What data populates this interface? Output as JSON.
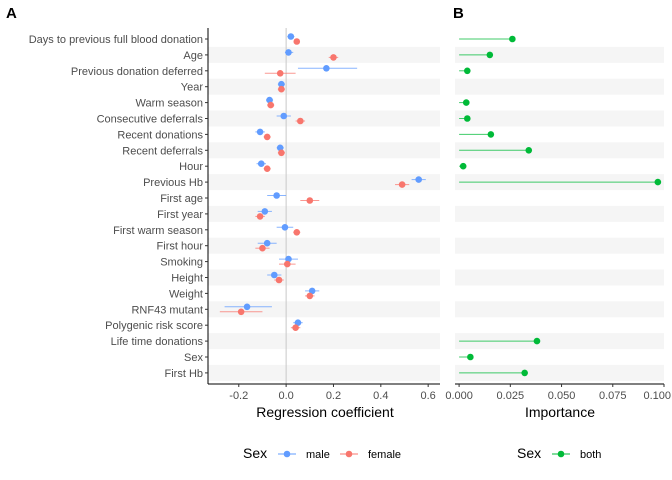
{
  "chart_data": [
    {
      "panel": "A",
      "type": "scatter",
      "xlabel": "Regression coefficient",
      "xlim": [
        -0.33,
        0.65
      ],
      "xticks": [
        -0.2,
        0.0,
        0.2,
        0.4,
        0.6
      ],
      "xtick_labels": [
        "-0.2",
        "0.0",
        "0.2",
        "0.4",
        "0.6"
      ],
      "categories": [
        "Days to previous full blood donation",
        "Age",
        "Previous donation deferred",
        "Year",
        "Warm season",
        "Consecutive deferrals",
        "Recent donations",
        "Recent deferrals",
        "Hour",
        "Previous Hb",
        "First age",
        "First year",
        "First warm season",
        "First hour",
        "Smoking",
        "Height",
        "Weight",
        "RNF43 mutant",
        "Polygenic risk score",
        "Life time donations",
        "Sex",
        "First Hb"
      ],
      "reference_line_x": 0,
      "series": [
        {
          "name": "male",
          "color": "#619CFF",
          "values": [
            0.02,
            0.01,
            0.17,
            -0.02,
            -0.07,
            -0.01,
            -0.11,
            -0.025,
            -0.105,
            0.56,
            -0.04,
            -0.09,
            -0.005,
            -0.08,
            0.01,
            -0.05,
            0.11,
            -0.165,
            0.05,
            null,
            null,
            null
          ],
          "ci_low": [
            0.005,
            -0.005,
            0.05,
            -0.035,
            -0.085,
            -0.04,
            -0.13,
            -0.04,
            -0.125,
            0.53,
            -0.08,
            -0.12,
            -0.04,
            -0.12,
            -0.03,
            -0.08,
            0.08,
            -0.26,
            0.03,
            null,
            null,
            null
          ],
          "ci_high": [
            0.035,
            0.03,
            0.3,
            -0.005,
            -0.055,
            0.02,
            -0.09,
            -0.01,
            -0.085,
            0.59,
            0.0,
            -0.06,
            0.03,
            -0.04,
            0.05,
            -0.02,
            0.14,
            -0.06,
            0.07,
            null,
            null,
            null
          ]
        },
        {
          "name": "female",
          "color": "#F8766D",
          "values": [
            0.045,
            0.2,
            -0.025,
            -0.02,
            -0.065,
            0.06,
            -0.08,
            -0.02,
            -0.08,
            0.49,
            0.1,
            -0.11,
            0.045,
            -0.1,
            0.005,
            -0.03,
            0.1,
            -0.19,
            0.04,
            null,
            null,
            null
          ],
          "ci_low": [
            0.035,
            0.18,
            -0.09,
            -0.035,
            -0.08,
            0.04,
            -0.095,
            -0.035,
            -0.095,
            0.46,
            0.06,
            -0.13,
            0.03,
            -0.13,
            -0.03,
            -0.05,
            0.08,
            -0.28,
            0.02,
            null,
            null,
            null
          ],
          "ci_high": [
            0.055,
            0.22,
            0.04,
            -0.005,
            -0.05,
            0.08,
            -0.065,
            -0.005,
            -0.065,
            0.52,
            0.14,
            -0.09,
            0.06,
            -0.07,
            0.04,
            -0.01,
            0.12,
            -0.1,
            0.06,
            null,
            null,
            null
          ]
        }
      ],
      "legend_title": "Sex",
      "legend_entries": [
        "male",
        "female"
      ],
      "legend_position": "bottom"
    },
    {
      "panel": "B",
      "type": "scatter",
      "xlabel": "Importance",
      "xlim": [
        -0.002,
        0.1
      ],
      "xticks": [
        0.0,
        0.025,
        0.05,
        0.075,
        0.1
      ],
      "xtick_labels": [
        "0.000",
        "0.025",
        "0.050",
        "0.075",
        "0.100"
      ],
      "categories": [
        "Days to previous full blood donation",
        "Age",
        "Previous donation deferred",
        "Year",
        "Warm season",
        "Consecutive deferrals",
        "Recent donations",
        "Recent deferrals",
        "Hour",
        "Previous Hb",
        "First age",
        "First year",
        "First warm season",
        "First hour",
        "Smoking",
        "Height",
        "Weight",
        "RNF43 mutant",
        "Polygenic risk score",
        "Life time donations",
        "Sex",
        "First Hb"
      ],
      "series": [
        {
          "name": "both",
          "color": "#00BA38",
          "values": [
            0.026,
            0.015,
            0.004,
            null,
            0.0035,
            0.004,
            0.0155,
            0.034,
            0.002,
            0.097,
            null,
            null,
            null,
            null,
            null,
            null,
            null,
            null,
            null,
            0.038,
            0.0055,
            0.032
          ]
        }
      ],
      "legend_title": "Sex",
      "legend_entries": [
        "both"
      ],
      "legend_position": "bottom"
    }
  ]
}
